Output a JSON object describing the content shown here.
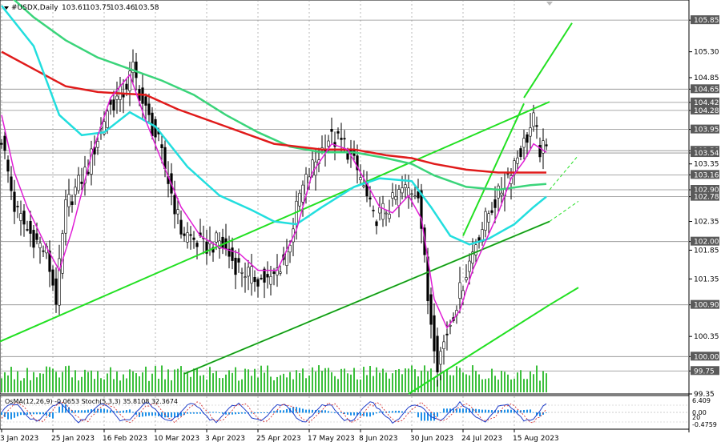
{
  "header": {
    "symbol": "#USDX,Daily",
    "open": "103.61",
    "high": "103.75",
    "low": "103.46",
    "close": "103.58"
  },
  "osc_header": {
    "text": "OsMA(12,26,9) -0.0653  Stoch(5,3,3) 35.8108 32.3674"
  },
  "colors": {
    "background": "#ffffff",
    "grid": "#8c8c8c",
    "candle": "#2e7d32",
    "volume": "#3bbf3b",
    "ma_red": "#e01b1b",
    "ma_green": "#3ad47a",
    "ma_cyan": "#22dede",
    "ma_magenta": "#e01ed6",
    "channel": "#22e022",
    "osma": "#1e90e8",
    "stoch_main": "#1e3cc8",
    "stoch_signal": "#d21e1e"
  },
  "chart_data": {
    "type": "candlestick",
    "title": "#USDX,Daily",
    "ylim": [
      99.35,
      106.2
    ],
    "price_levels": [
      "105.85",
      "104.65",
      "104.42",
      "104.28",
      "103.95",
      "103.58",
      "103.54",
      "103.16",
      "102.90",
      "102.78",
      "102.00",
      "100.90",
      "100.00",
      "99.75"
    ],
    "y_ticks": [
      "105.85",
      "105.30",
      "104.85",
      "104.65",
      "104.42",
      "104.28",
      "103.95",
      "103.58",
      "103.54",
      "103.35",
      "103.16",
      "102.90",
      "102.78",
      "102.35",
      "102.00",
      "101.85",
      "101.35",
      "100.90",
      "100.35",
      "100.00",
      "99.75",
      "99.35"
    ],
    "x_ticks": [
      "3 Jan 2023",
      "25 Jan 2023",
      "16 Feb 2023",
      "10 Mar 2023",
      "3 Apr 2023",
      "25 Apr 2023",
      "17 May 2023",
      "8 Jun 2023",
      "30 Jun 2023",
      "24 Jul 2023",
      "15 Aug 2023"
    ],
    "x_tick_index": [
      0,
      16,
      32,
      48,
      64,
      80,
      96,
      112,
      128,
      144,
      160
    ],
    "bar_count": 171,
    "close_path": [
      [
        0,
        103.8
      ],
      [
        4,
        102.6
      ],
      [
        8,
        102.2
      ],
      [
        14,
        101.8
      ],
      [
        17,
        101.0
      ],
      [
        20,
        102.6
      ],
      [
        27,
        103.3
      ],
      [
        33,
        104.3
      ],
      [
        38,
        104.6
      ],
      [
        41,
        105.0
      ],
      [
        44,
        104.4
      ],
      [
        49,
        103.7
      ],
      [
        56,
        102.2
      ],
      [
        63,
        101.9
      ],
      [
        68,
        102.0
      ],
      [
        73,
        101.6
      ],
      [
        78,
        101.4
      ],
      [
        84,
        101.3
      ],
      [
        89,
        101.8
      ],
      [
        93,
        102.8
      ],
      [
        97,
        103.3
      ],
      [
        102,
        103.8
      ],
      [
        107,
        103.7
      ],
      [
        112,
        103.1
      ],
      [
        116,
        102.4
      ],
      [
        121,
        102.6
      ],
      [
        125,
        102.9
      ],
      [
        130,
        102.9
      ],
      [
        133,
        101.0
      ],
      [
        136,
        99.9
      ],
      [
        140,
        100.6
      ],
      [
        144,
        101.3
      ],
      [
        148,
        102.0
      ],
      [
        152,
        102.5
      ],
      [
        156,
        102.9
      ],
      [
        159,
        103.3
      ],
      [
        163,
        103.7
      ],
      [
        166,
        104.1
      ],
      [
        168,
        103.6
      ],
      [
        170,
        103.58
      ]
    ],
    "ma_red": [
      [
        0,
        105.3
      ],
      [
        10,
        105.0
      ],
      [
        20,
        104.7
      ],
      [
        30,
        104.6
      ],
      [
        45,
        104.55
      ],
      [
        55,
        104.3
      ],
      [
        70,
        104.0
      ],
      [
        85,
        103.7
      ],
      [
        100,
        103.6
      ],
      [
        110,
        103.6
      ],
      [
        120,
        103.5
      ],
      [
        128,
        103.45
      ],
      [
        135,
        103.35
      ],
      [
        145,
        103.25
      ],
      [
        155,
        103.2
      ],
      [
        162,
        103.2
      ],
      [
        170,
        103.2
      ]
    ],
    "ma_green": [
      [
        0,
        106.4
      ],
      [
        10,
        105.9
      ],
      [
        20,
        105.5
      ],
      [
        30,
        105.2
      ],
      [
        40,
        105.0
      ],
      [
        50,
        104.8
      ],
      [
        60,
        104.55
      ],
      [
        70,
        104.2
      ],
      [
        80,
        103.9
      ],
      [
        90,
        103.65
      ],
      [
        100,
        103.55
      ],
      [
        110,
        103.55
      ],
      [
        120,
        103.45
      ],
      [
        128,
        103.35
      ],
      [
        135,
        103.15
      ],
      [
        145,
        102.95
      ],
      [
        155,
        102.9
      ],
      [
        165,
        102.98
      ],
      [
        170,
        103.0
      ]
    ],
    "ma_cyan": [
      [
        0,
        106.1
      ],
      [
        10,
        105.4
      ],
      [
        18,
        104.2
      ],
      [
        25,
        103.85
      ],
      [
        32,
        103.9
      ],
      [
        40,
        104.25
      ],
      [
        48,
        104.0
      ],
      [
        58,
        103.3
      ],
      [
        68,
        102.8
      ],
      [
        78,
        102.55
      ],
      [
        85,
        102.35
      ],
      [
        92,
        102.3
      ],
      [
        100,
        102.6
      ],
      [
        110,
        102.95
      ],
      [
        118,
        103.1
      ],
      [
        128,
        103.05
      ],
      [
        134,
        102.6
      ],
      [
        140,
        102.1
      ],
      [
        146,
        101.95
      ],
      [
        152,
        102.05
      ],
      [
        160,
        102.3
      ],
      [
        166,
        102.6
      ],
      [
        170,
        102.78
      ]
    ],
    "ma_magenta": [
      [
        0,
        104.2
      ],
      [
        4,
        103.2
      ],
      [
        8,
        102.6
      ],
      [
        14,
        101.9
      ],
      [
        18,
        101.5
      ],
      [
        22,
        102.2
      ],
      [
        28,
        103.5
      ],
      [
        34,
        104.5
      ],
      [
        40,
        104.9
      ],
      [
        45,
        104.1
      ],
      [
        50,
        103.4
      ],
      [
        56,
        102.6
      ],
      [
        62,
        102.1
      ],
      [
        68,
        101.9
      ],
      [
        74,
        101.8
      ],
      [
        80,
        101.5
      ],
      [
        86,
        101.5
      ],
      [
        92,
        102.2
      ],
      [
        97,
        103.2
      ],
      [
        103,
        103.7
      ],
      [
        108,
        103.6
      ],
      [
        114,
        103.0
      ],
      [
        118,
        102.6
      ],
      [
        122,
        102.5
      ],
      [
        127,
        102.8
      ],
      [
        131,
        102.4
      ],
      [
        135,
        101.0
      ],
      [
        139,
        100.5
      ],
      [
        143,
        100.8
      ],
      [
        147,
        101.5
      ],
      [
        151,
        102.0
      ],
      [
        155,
        102.5
      ],
      [
        159,
        103.1
      ],
      [
        163,
        103.4
      ],
      [
        166,
        103.7
      ],
      [
        170,
        103.55
      ]
    ],
    "channel_lines": [
      {
        "style": "solid",
        "from": [
          -1,
          100.25
        ],
        "to": [
          171,
          104.43
        ]
      },
      {
        "style": "solid",
        "from": [
          127,
          99.35
        ],
        "to": [
          171,
          100.9
        ]
      },
      {
        "style": "solid",
        "from": [
          144,
          102.1
        ],
        "to": [
          163,
          104.4
        ]
      },
      {
        "style": "solid",
        "from": [
          163,
          104.5
        ],
        "to": [
          178,
          105.8
        ]
      },
      {
        "style": "dashed",
        "from": [
          171,
          102.9
        ],
        "to": [
          180,
          103.5
        ]
      },
      {
        "style": "solid",
        "from": [
          57,
          99.7
        ],
        "to": [
          171,
          102.35
        ]
      },
      {
        "style": "dashed",
        "from": [
          171,
          102.35
        ],
        "to": [
          180,
          102.7
        ]
      },
      {
        "style": "solid",
        "from": [
          171,
          100.9
        ],
        "to": [
          180,
          101.2
        ]
      }
    ],
    "osc_scale": [
      "6.409",
      "0.00",
      "20",
      "-0.4759"
    ]
  }
}
